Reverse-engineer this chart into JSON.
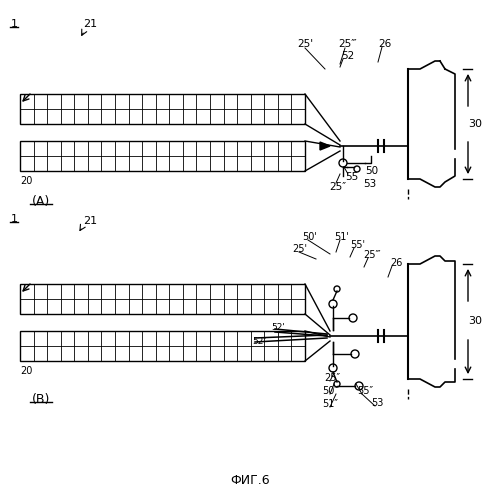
{
  "bg_color": "#ffffff",
  "line_color": "#000000",
  "fig_label": "ФИГ.6",
  "panel_A_label": "(A)",
  "panel_B_label": "(B)"
}
